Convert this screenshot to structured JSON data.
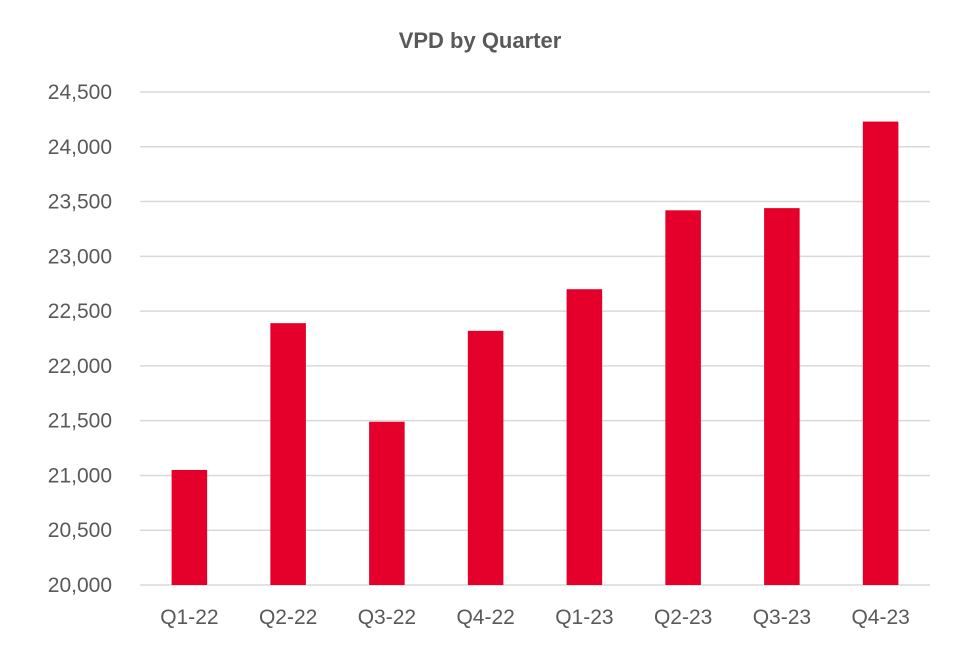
{
  "chart_data": {
    "type": "bar",
    "title": "VPD by Quarter",
    "xlabel": "",
    "ylabel": "",
    "categories": [
      "Q1-22",
      "Q2-22",
      "Q3-22",
      "Q4-22",
      "Q1-23",
      "Q2-23",
      "Q3-23",
      "Q4-23"
    ],
    "values": [
      21050,
      22390,
      21490,
      22320,
      22700,
      23420,
      23440,
      24230
    ],
    "ylim": [
      20000,
      24500
    ],
    "yticks": [
      20000,
      20500,
      21000,
      21500,
      22000,
      22500,
      23000,
      23500,
      24000,
      24500
    ],
    "ytick_labels": [
      "20,000",
      "20,500",
      "21,000",
      "21,500",
      "22,000",
      "22,500",
      "23,000",
      "23,500",
      "24,000",
      "24,500"
    ],
    "grid": true,
    "legend": "none",
    "colors": {
      "bar": "#E4002B",
      "grid": "#D9D9D9",
      "text": "#595959"
    }
  }
}
